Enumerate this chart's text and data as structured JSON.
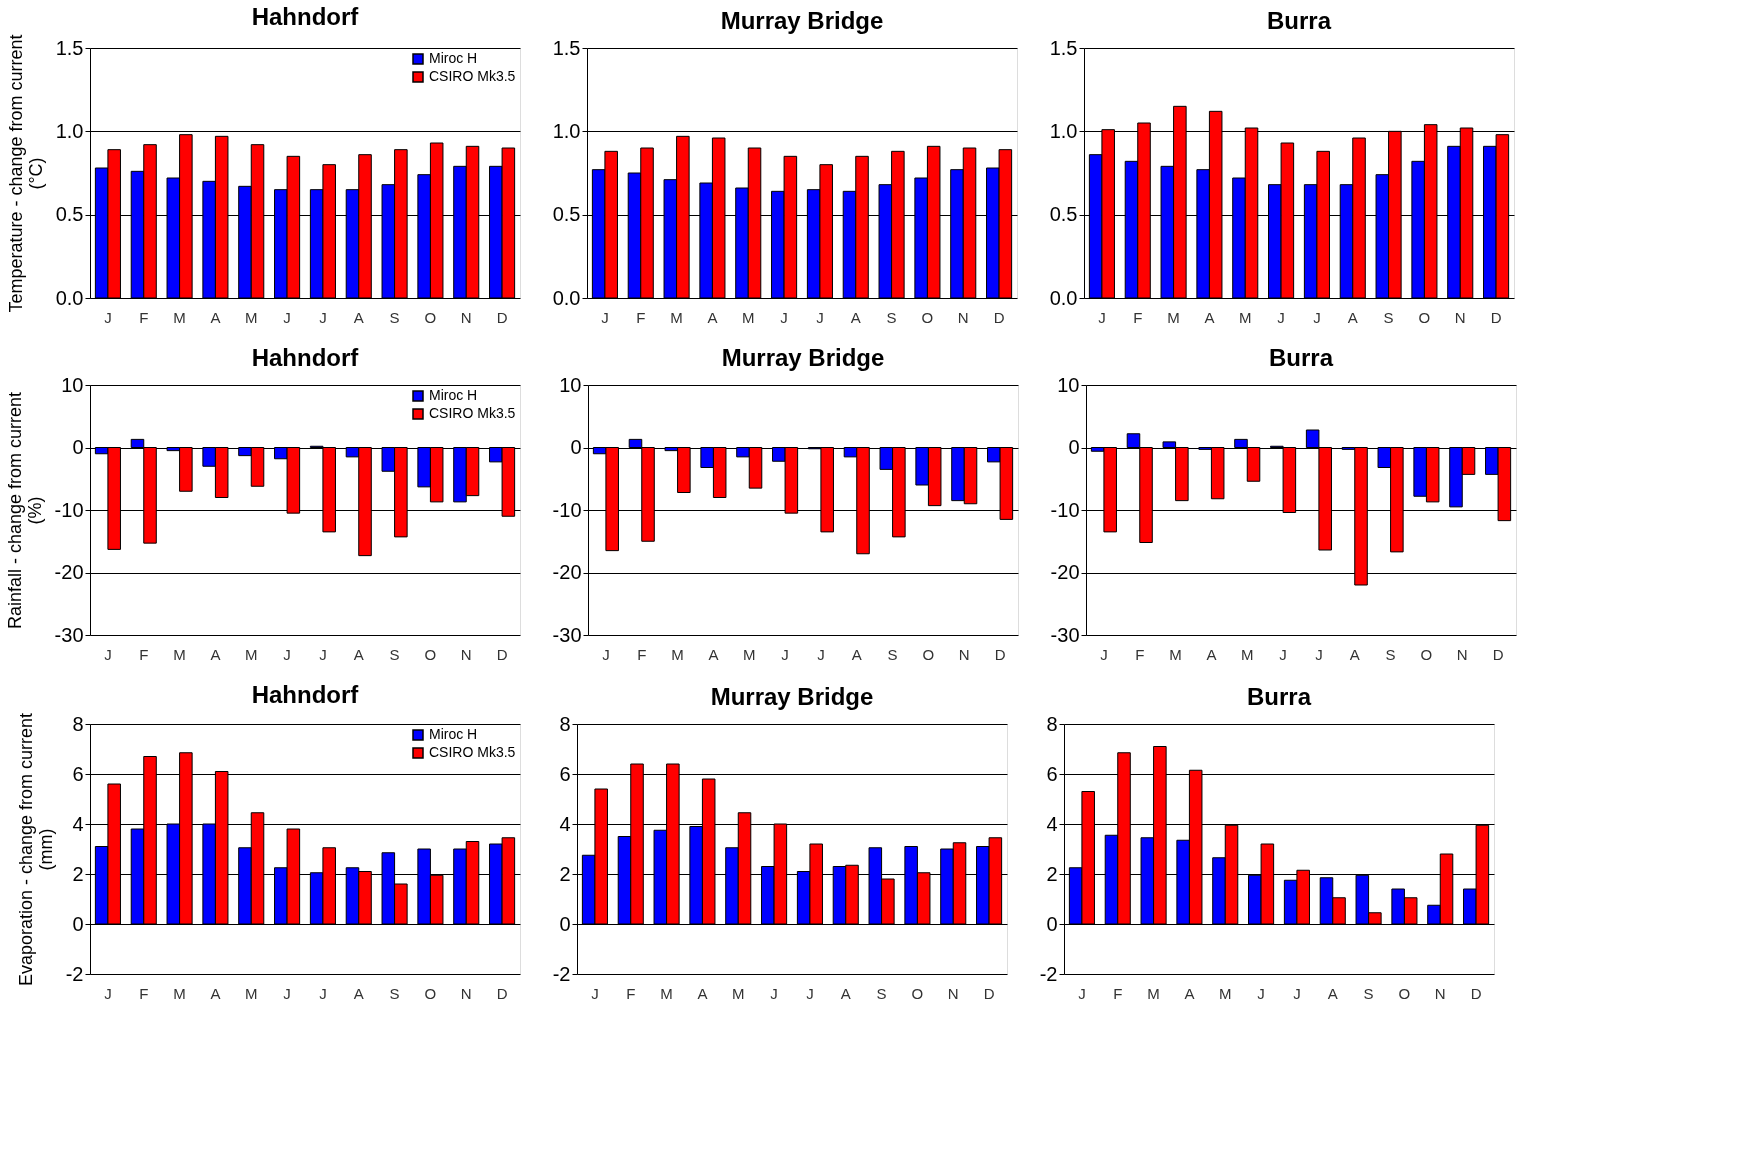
{
  "chart_data": [
    {
      "type": "bar",
      "title": "Hahndorf",
      "ylabel": "Temperature - change from current (°C)",
      "categories": [
        "J",
        "F",
        "M",
        "A",
        "M",
        "J",
        "J",
        "A",
        "S",
        "O",
        "N",
        "D"
      ],
      "ylim": [
        0,
        1.5
      ],
      "yticks": [
        {
          "value": 0,
          "label": "0.0"
        },
        {
          "value": 0.5,
          "label": "0.5"
        },
        {
          "value": 1,
          "label": "1.0"
        },
        {
          "value": 1.5,
          "label": "1.5"
        }
      ],
      "grid": "y",
      "legend": "top right",
      "series": [
        {
          "name": "Miroc H",
          "color": "#0000ff",
          "values": [
            0.78,
            0.76,
            0.72,
            0.7,
            0.67,
            0.65,
            0.65,
            0.65,
            0.68,
            0.74,
            0.79,
            0.79
          ]
        },
        {
          "name": "CSIRO Mk3.5",
          "color": "#ff0000",
          "values": [
            0.89,
            0.92,
            0.98,
            0.97,
            0.92,
            0.85,
            0.8,
            0.86,
            0.89,
            0.93,
            0.91,
            0.9
          ]
        }
      ]
    },
    {
      "type": "bar",
      "title": "Murray Bridge",
      "categories": [
        "J",
        "F",
        "M",
        "A",
        "M",
        "J",
        "J",
        "A",
        "S",
        "O",
        "N",
        "D"
      ],
      "ylim": [
        0,
        1.5
      ],
      "yticks": [
        {
          "value": 0,
          "label": "0.0"
        },
        {
          "value": 0.5,
          "label": "0.5"
        },
        {
          "value": 1,
          "label": "1.0"
        },
        {
          "value": 1.5,
          "label": "1.5"
        }
      ],
      "grid": "y",
      "series": [
        {
          "color": "#0000ff",
          "values": [
            0.77,
            0.75,
            0.71,
            0.69,
            0.66,
            0.64,
            0.65,
            0.64,
            0.68,
            0.72,
            0.77,
            0.78
          ]
        },
        {
          "color": "#ff0000",
          "values": [
            0.88,
            0.9,
            0.97,
            0.96,
            0.9,
            0.85,
            0.8,
            0.85,
            0.88,
            0.91,
            0.9,
            0.89
          ]
        }
      ]
    },
    {
      "type": "bar",
      "title": "Burra",
      "categories": [
        "J",
        "F",
        "M",
        "A",
        "M",
        "J",
        "J",
        "A",
        "S",
        "O",
        "N",
        "D"
      ],
      "ylim": [
        0,
        1.5
      ],
      "yticks": [
        {
          "value": 0,
          "label": "0.0"
        },
        {
          "value": 0.5,
          "label": "0.5"
        },
        {
          "value": 1,
          "label": "1.0"
        },
        {
          "value": 1.5,
          "label": "1.5"
        }
      ],
      "grid": "y",
      "series": [
        {
          "color": "#0000ff",
          "values": [
            0.86,
            0.82,
            0.79,
            0.77,
            0.72,
            0.68,
            0.68,
            0.68,
            0.74,
            0.82,
            0.91,
            0.91
          ]
        },
        {
          "color": "#ff0000",
          "values": [
            1.01,
            1.05,
            1.15,
            1.12,
            1.02,
            0.93,
            0.88,
            0.96,
            1.0,
            1.04,
            1.02,
            0.98
          ]
        }
      ]
    },
    {
      "type": "bar",
      "title": "Hahndorf",
      "ylabel": "Rainfall - change from current (%)",
      "categories": [
        "J",
        "F",
        "M",
        "A",
        "M",
        "J",
        "J",
        "A",
        "S",
        "O",
        "N",
        "D"
      ],
      "ylim": [
        -30,
        10
      ],
      "yticks": [
        -30,
        -20,
        -10,
        0,
        10
      ],
      "grid": "y",
      "legend": "top right",
      "series": [
        {
          "name": "Miroc H",
          "color": "#0000ff",
          "values": [
            -1,
            1.3,
            -0.5,
            -3,
            -1.3,
            -1.8,
            0.2,
            -1.5,
            -3.8,
            -6.3,
            -8.7,
            -2.3
          ]
        },
        {
          "name": "CSIRO Mk3.5",
          "color": "#ff0000",
          "values": [
            -16.3,
            -15.3,
            -7,
            -8,
            -6.2,
            -10.5,
            -13.5,
            -17.3,
            -14.3,
            -8.7,
            -7.7,
            -11
          ]
        }
      ]
    },
    {
      "type": "bar",
      "title": "Murray Bridge",
      "categories": [
        "J",
        "F",
        "M",
        "A",
        "M",
        "J",
        "J",
        "A",
        "S",
        "O",
        "N",
        "D"
      ],
      "ylim": [
        -30,
        10
      ],
      "yticks": [
        -30,
        -20,
        -10,
        0,
        10
      ],
      "grid": "y",
      "series": [
        {
          "color": "#0000ff",
          "values": [
            -1,
            1.3,
            -0.5,
            -3.2,
            -1.5,
            -2.2,
            -0.2,
            -1.5,
            -3.5,
            -6,
            -8.5,
            -2.3
          ]
        },
        {
          "color": "#ff0000",
          "values": [
            -16.5,
            -15,
            -7.2,
            -8,
            -6.5,
            -10.5,
            -13.5,
            -17,
            -14.3,
            -9.3,
            -9,
            -11.5
          ]
        }
      ]
    },
    {
      "type": "bar",
      "title": "Burra",
      "categories": [
        "J",
        "F",
        "M",
        "A",
        "M",
        "J",
        "J",
        "A",
        "S",
        "O",
        "N",
        "D"
      ],
      "ylim": [
        -30,
        10
      ],
      "yticks": [
        -30,
        -20,
        -10,
        0,
        10
      ],
      "grid": "y",
      "series": [
        {
          "color": "#0000ff",
          "values": [
            -0.6,
            2.2,
            0.9,
            -0.3,
            1.3,
            0.2,
            2.8,
            -0.3,
            -3.2,
            -7.8,
            -9.5,
            -4.3
          ]
        },
        {
          "color": "#ff0000",
          "values": [
            -13.5,
            -15.2,
            -8.5,
            -8.2,
            -5.4,
            -10.4,
            -16.4,
            -22,
            -16.7,
            -8.7,
            -4.3,
            -11.7
          ]
        }
      ]
    },
    {
      "type": "bar",
      "title": "Hahndorf",
      "ylabel": "Evaporation - change from current (mm)",
      "categories": [
        "J",
        "F",
        "M",
        "A",
        "M",
        "J",
        "J",
        "A",
        "S",
        "O",
        "N",
        "D"
      ],
      "ylim": [
        -2,
        8
      ],
      "yticks": [
        -2,
        0,
        2,
        4,
        6,
        8
      ],
      "grid": "y",
      "legend": "top right",
      "series": [
        {
          "name": "Miroc H",
          "color": "#0000ff",
          "values": [
            3.1,
            3.8,
            4.0,
            4.0,
            3.05,
            2.25,
            2.05,
            2.25,
            2.85,
            3.0,
            3.0,
            3.2
          ]
        },
        {
          "name": "CSIRO Mk3.5",
          "color": "#ff0000",
          "values": [
            5.6,
            6.7,
            6.85,
            6.1,
            4.45,
            3.8,
            3.05,
            2.1,
            1.6,
            1.95,
            3.3,
            3.45
          ]
        }
      ]
    },
    {
      "type": "bar",
      "title": "Murray Bridge",
      "categories": [
        "J",
        "F",
        "M",
        "A",
        "M",
        "J",
        "J",
        "A",
        "S",
        "O",
        "N",
        "D"
      ],
      "ylim": [
        -2,
        8
      ],
      "yticks": [
        -2,
        0,
        2,
        4,
        6,
        8
      ],
      "grid": "y",
      "series": [
        {
          "color": "#0000ff",
          "values": [
            2.75,
            3.5,
            3.75,
            3.9,
            3.05,
            2.3,
            2.1,
            2.3,
            3.05,
            3.1,
            3.0,
            3.1
          ]
        },
        {
          "color": "#ff0000",
          "values": [
            5.4,
            6.4,
            6.4,
            5.8,
            4.45,
            4.0,
            3.2,
            2.35,
            1.8,
            2.05,
            3.25,
            3.45
          ]
        }
      ]
    },
    {
      "type": "bar",
      "title": "Burra",
      "categories": [
        "J",
        "F",
        "M",
        "A",
        "M",
        "J",
        "J",
        "A",
        "S",
        "O",
        "N",
        "D"
      ],
      "ylim": [
        -2,
        8
      ],
      "yticks": [
        -2,
        0,
        2,
        4,
        6,
        8
      ],
      "grid": "y",
      "series": [
        {
          "color": "#0000ff",
          "values": [
            2.25,
            3.55,
            3.45,
            3.35,
            2.65,
            1.95,
            1.75,
            1.85,
            1.95,
            1.4,
            0.75,
            1.4
          ]
        },
        {
          "color": "#ff0000",
          "values": [
            5.3,
            6.85,
            7.1,
            6.15,
            3.95,
            3.2,
            2.15,
            1.05,
            0.45,
            1.05,
            2.8,
            3.95
          ]
        }
      ]
    }
  ]
}
